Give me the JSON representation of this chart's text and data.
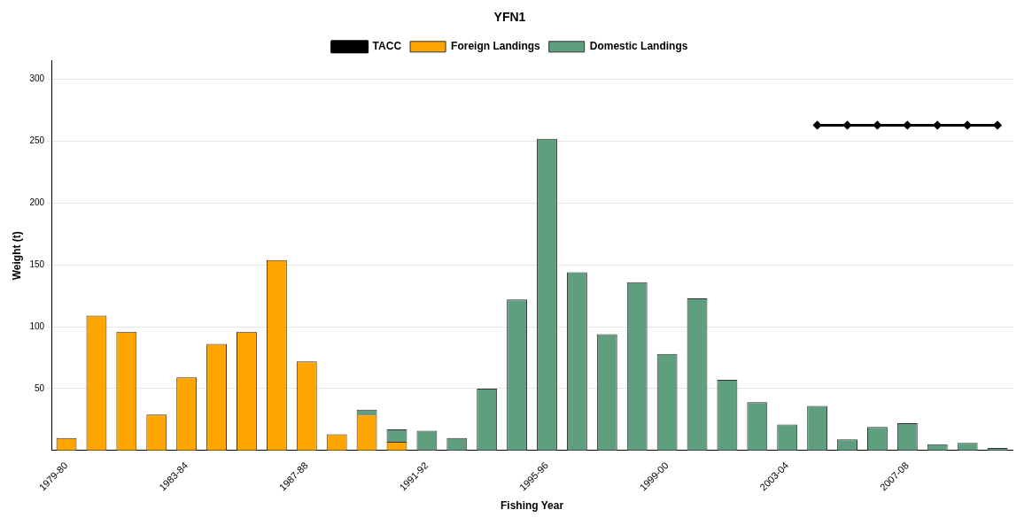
{
  "chart_data": {
    "type": "bar",
    "title": "YFN1",
    "xlabel": "Fishing Year",
    "ylabel": "Weight (t)",
    "categories": [
      "1979-80",
      null,
      null,
      null,
      "1983-84",
      null,
      null,
      null,
      "1987-88",
      null,
      null,
      null,
      "1991-92",
      null,
      null,
      null,
      "1995-96",
      null,
      null,
      null,
      "1999-00",
      null,
      null,
      null,
      "2003-04",
      null,
      null,
      null,
      "2007-08",
      null,
      null,
      null
    ],
    "stacked": true,
    "ylim": [
      0,
      315
    ],
    "yticks": [
      50,
      100,
      150,
      200,
      250,
      300
    ],
    "grid": "y",
    "legend": "top",
    "series": [
      {
        "name": "Foreign Landings",
        "color": "#ffa500",
        "values": [
          10,
          109,
          96,
          29,
          59,
          86,
          96,
          154,
          72,
          13,
          29,
          7,
          null,
          null,
          null,
          null,
          null,
          null,
          null,
          null,
          null,
          null,
          null,
          null,
          null,
          null,
          null,
          null,
          null,
          null,
          null,
          null
        ]
      },
      {
        "name": "Domestic Landings",
        "color": "#5f9e7f",
        "values": [
          null,
          null,
          null,
          null,
          null,
          null,
          null,
          null,
          null,
          null,
          4,
          10,
          16,
          10,
          50,
          122,
          252,
          144,
          94,
          136,
          78,
          123,
          57,
          39,
          21,
          36,
          9,
          19,
          22,
          5,
          6,
          2
        ]
      },
      {
        "name": "TACC",
        "type": "line",
        "color": "#000000",
        "marker": "diamond",
        "line_style": "solid",
        "values": [
          null,
          null,
          null,
          null,
          null,
          null,
          null,
          null,
          null,
          null,
          null,
          null,
          null,
          null,
          null,
          null,
          null,
          null,
          null,
          null,
          null,
          null,
          null,
          null,
          null,
          263,
          263,
          263,
          263,
          263,
          263,
          263
        ]
      }
    ]
  }
}
